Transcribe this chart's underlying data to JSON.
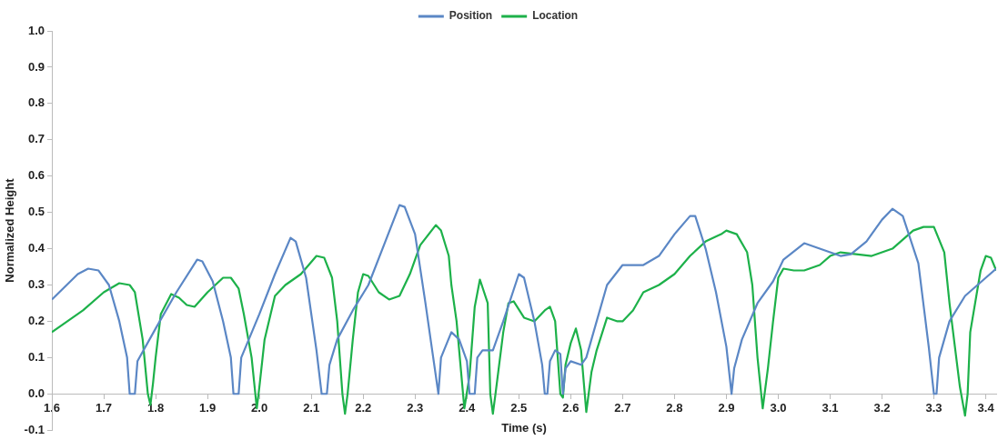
{
  "chart_data": {
    "type": "line",
    "xlabel": "Time (s)",
    "ylabel": "Normalized Height",
    "xlim": [
      1.6,
      3.42
    ],
    "ylim": [
      -0.1,
      1.0
    ],
    "xticks": [
      1.6,
      1.7,
      1.8,
      1.9,
      {
        "value": 2.0,
        "label": "2.0"
      },
      2.1,
      2.2,
      2.3,
      2.4,
      2.5,
      2.6,
      2.7,
      2.8,
      2.9,
      {
        "value": 3.0,
        "label": "3.0"
      },
      3.1,
      3.2,
      3.3,
      3.4
    ],
    "yticks": [
      -0.1,
      {
        "value": 0,
        "label": "0.0"
      },
      0.1,
      0.2,
      0.3,
      0.4,
      0.5,
      0.6,
      0.7,
      0.8,
      0.9,
      {
        "value": 1.0,
        "label": "1.0"
      }
    ],
    "grid": false,
    "legend": "top",
    "marker": "none",
    "line_style": "solid",
    "series": [
      {
        "name": "Position",
        "color": "#5b87c5",
        "x": [
          1.6,
          1.65,
          1.67,
          1.69,
          1.71,
          1.73,
          1.745,
          1.75,
          1.76,
          1.765,
          1.8,
          1.84,
          1.88,
          1.89,
          1.91,
          1.93,
          1.945,
          1.95,
          1.96,
          1.965,
          2.0,
          2.03,
          2.06,
          2.07,
          2.09,
          2.11,
          2.12,
          2.13,
          2.135,
          2.15,
          2.18,
          2.21,
          2.24,
          2.27,
          2.28,
          2.3,
          2.32,
          2.335,
          2.345,
          2.35,
          2.37,
          2.385,
          2.4,
          2.405,
          2.415,
          2.42,
          2.43,
          2.45,
          2.47,
          2.5,
          2.51,
          2.53,
          2.545,
          2.55,
          2.555,
          2.56,
          2.57,
          2.58,
          2.585,
          2.59,
          2.6,
          2.62,
          2.63,
          2.65,
          2.67,
          2.7,
          2.74,
          2.77,
          2.8,
          2.83,
          2.84,
          2.86,
          2.88,
          2.9,
          2.91,
          2.915,
          2.93,
          2.96,
          2.99,
          3.01,
          3.05,
          3.08,
          3.12,
          3.14,
          3.17,
          3.2,
          3.22,
          3.24,
          3.27,
          3.29,
          3.3,
          3.305,
          3.31,
          3.33,
          3.36,
          3.4,
          3.42
        ],
        "values": [
          0.26,
          0.33,
          0.345,
          0.34,
          0.3,
          0.2,
          0.1,
          0,
          0,
          0.09,
          0.18,
          0.28,
          0.37,
          0.365,
          0.31,
          0.2,
          0.1,
          0,
          0,
          0.1,
          0.22,
          0.33,
          0.43,
          0.42,
          0.32,
          0.12,
          0,
          0,
          0.08,
          0.15,
          0.23,
          0.3,
          0.41,
          0.52,
          0.515,
          0.44,
          0.25,
          0.1,
          0,
          0.1,
          0.17,
          0.15,
          0.09,
          0,
          0,
          0.1,
          0.12,
          0.12,
          0.2,
          0.33,
          0.32,
          0.2,
          0.08,
          0,
          0,
          0.09,
          0.12,
          0.11,
          0,
          0.07,
          0.09,
          0.08,
          0.1,
          0.2,
          0.3,
          0.355,
          0.355,
          0.38,
          0.44,
          0.49,
          0.49,
          0.4,
          0.28,
          0.13,
          0,
          0.07,
          0.15,
          0.25,
          0.31,
          0.37,
          0.415,
          0.4,
          0.38,
          0.385,
          0.42,
          0.48,
          0.51,
          0.49,
          0.36,
          0.13,
          0,
          0,
          0.1,
          0.2,
          0.27,
          0.32,
          0.345
        ]
      },
      {
        "name": "Location",
        "color": "#1db14a",
        "x": [
          1.6,
          1.62,
          1.66,
          1.7,
          1.73,
          1.75,
          1.76,
          1.775,
          1.785,
          1.79,
          1.795,
          1.8,
          1.81,
          1.83,
          1.845,
          1.86,
          1.875,
          1.9,
          1.93,
          1.945,
          1.96,
          1.97,
          1.985,
          1.995,
          2.0,
          2.01,
          2.03,
          2.05,
          2.08,
          2.11,
          2.125,
          2.14,
          2.15,
          2.16,
          2.165,
          2.17,
          2.18,
          2.19,
          2.2,
          2.21,
          2.23,
          2.25,
          2.27,
          2.29,
          2.31,
          2.34,
          2.35,
          2.365,
          2.37,
          2.38,
          2.395,
          2.405,
          2.415,
          2.425,
          2.44,
          2.445,
          2.45,
          2.455,
          2.47,
          2.48,
          2.49,
          2.51,
          2.53,
          2.55,
          2.56,
          2.57,
          2.58,
          2.585,
          2.59,
          2.6,
          2.61,
          2.62,
          2.63,
          2.64,
          2.65,
          2.67,
          2.69,
          2.7,
          2.72,
          2.74,
          2.77,
          2.8,
          2.83,
          2.86,
          2.89,
          2.9,
          2.92,
          2.94,
          2.95,
          2.96,
          2.97,
          2.98,
          2.99,
          3.0,
          3.01,
          3.03,
          3.05,
          3.08,
          3.1,
          3.12,
          3.15,
          3.18,
          3.22,
          3.26,
          3.28,
          3.3,
          3.32,
          3.33,
          3.35,
          3.36,
          3.365,
          3.37,
          3.39,
          3.4,
          3.41,
          3.42
        ],
        "values": [
          0.17,
          0.19,
          0.23,
          0.28,
          0.305,
          0.3,
          0.28,
          0.15,
          0,
          -0.03,
          0.03,
          0.1,
          0.22,
          0.275,
          0.265,
          0.245,
          0.24,
          0.28,
          0.32,
          0.32,
          0.29,
          0.22,
          0.1,
          -0.04,
          0.02,
          0.15,
          0.27,
          0.3,
          0.33,
          0.38,
          0.375,
          0.32,
          0.2,
          0,
          -0.055,
          0,
          0.15,
          0.28,
          0.33,
          0.325,
          0.28,
          0.26,
          0.27,
          0.33,
          0.41,
          0.465,
          0.45,
          0.38,
          0.3,
          0.2,
          -0.04,
          0.05,
          0.24,
          0.315,
          0.25,
          0,
          -0.055,
          0,
          0.17,
          0.25,
          0.255,
          0.21,
          0.2,
          0.23,
          0.24,
          0.2,
          0,
          -0.01,
          0.08,
          0.14,
          0.18,
          0.12,
          -0.05,
          0.06,
          0.12,
          0.21,
          0.2,
          0.2,
          0.23,
          0.28,
          0.3,
          0.33,
          0.38,
          0.42,
          0.44,
          0.45,
          0.44,
          0.39,
          0.3,
          0.1,
          -0.04,
          0.07,
          0.2,
          0.32,
          0.345,
          0.34,
          0.34,
          0.355,
          0.38,
          0.39,
          0.385,
          0.38,
          0.4,
          0.45,
          0.46,
          0.46,
          0.39,
          0.25,
          0.02,
          -0.06,
          0,
          0.17,
          0.34,
          0.38,
          0.375,
          0.34
        ]
      }
    ]
  }
}
